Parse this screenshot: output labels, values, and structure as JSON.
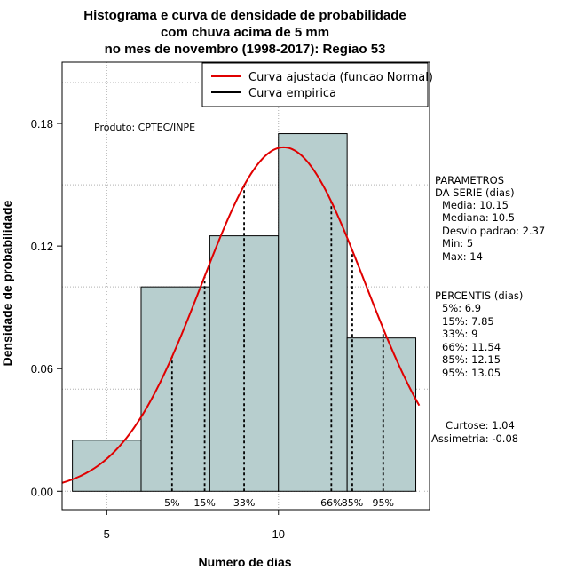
{
  "title_lines": [
    "Histograma e curva de densidade de probabilidade",
    "com chuva acima de 5 mm",
    "no mes de novembro (1998-2017): Regiao 53"
  ],
  "credit": "Produto: CPTEC/INPE",
  "legend": {
    "fitted_label": "Curva ajustada (funcao Normal)",
    "empirical_label": "Curva empirica"
  },
  "parameters": {
    "heading": [
      "PARAMETROS",
      "DA SERIE (dias)"
    ],
    "lines": [
      "Media: 10.15",
      "Mediana: 10.5",
      "Desvio padrao: 2.37",
      "Min: 5",
      "Max: 14"
    ]
  },
  "percentiles": {
    "heading": "PERCENTIS (dias)",
    "lines": [
      "5%: 6.9",
      "15%: 7.85",
      "33%: 9",
      "66%: 11.54",
      "85%: 12.15",
      "95%: 13.05"
    ]
  },
  "shape": {
    "lines": [
      "Curtose: 1.04",
      "Assimetria: -0.08"
    ]
  },
  "colors": {
    "bar_fill": "#b7cece",
    "bar_stroke": "#000000",
    "fitted_curve": "#e00000",
    "grid": "#b0b0b0"
  },
  "chart_data": {
    "type": "bar",
    "xlabel": "Numero de dias",
    "ylabel": "Densidade de probabilidade",
    "xlim": [
      3.7,
      14.4
    ],
    "ylim": [
      -0.009,
      0.21
    ],
    "x_ticks": [
      5,
      10
    ],
    "y_ticks": [
      0.0,
      0.06,
      0.12,
      0.18
    ],
    "y_tick_labels": [
      "0.00",
      "0.06",
      "0.12",
      "0.18"
    ],
    "bins": [
      {
        "x0": 4,
        "x1": 6,
        "density": 0.025
      },
      {
        "x0": 6,
        "x1": 8,
        "density": 0.1
      },
      {
        "x0": 8,
        "x1": 10,
        "density": 0.125
      },
      {
        "x0": 10,
        "x1": 12,
        "density": 0.175
      },
      {
        "x0": 12,
        "x1": 14,
        "density": 0.075
      }
    ],
    "fitted_normal": {
      "mean": 10.15,
      "sd": 2.37
    },
    "percentile_markers": [
      {
        "label": "5%",
        "x": 6.9
      },
      {
        "label": "15%",
        "x": 7.85
      },
      {
        "label": "33%",
        "x": 9
      },
      {
        "label": "66%",
        "x": 11.54
      },
      {
        "label": "85%",
        "x": 12.15
      },
      {
        "label": "95%",
        "x": 13.05
      }
    ],
    "grid": true
  }
}
